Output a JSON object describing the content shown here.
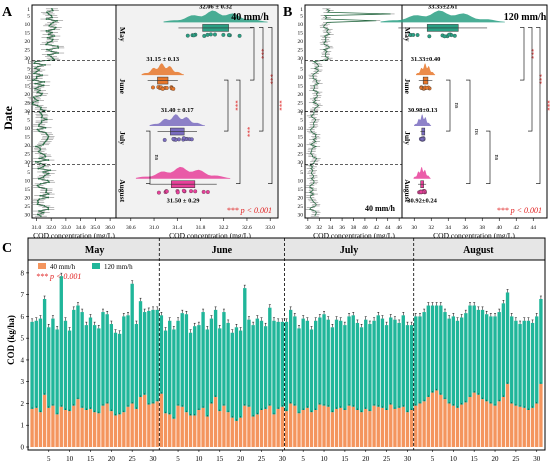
{
  "panel_labels": {
    "a": "A",
    "b": "B",
    "c": "C"
  },
  "colors": {
    "may": "#2aa084",
    "june": "#e8772a",
    "july": "#7a6cc0",
    "august": "#e8409a",
    "series_40": "#f4955e",
    "series_120": "#20b69a",
    "sig": "#e02020",
    "line": "#2a6a44"
  },
  "panel_a": {
    "ylabel": "Date",
    "time_xlabel": "COD concentration (mg/L)",
    "time_xticks": [
      "31.0",
      "32.0",
      "33.0",
      "34.0",
      "35.0",
      "36.0"
    ],
    "title": "40 mm/h",
    "dist_xlabel": "COD concentration (mg/L)",
    "dist_xticks": [
      "30.6",
      "31.0",
      "31.4",
      "31.8",
      "32.2",
      "32.6",
      "33.0"
    ],
    "months": [
      "May",
      "June",
      "July",
      "August"
    ],
    "stats": [
      "32.06 ± 0.32",
      "31.15 ± 0.13",
      "31.40 ± 0.17",
      "31.50 ± 0.29"
    ],
    "brackets": [
      {
        "pair": [
          "May",
          "June"
        ],
        "label": "***"
      },
      {
        "pair": [
          "May",
          "July"
        ],
        "label": "***"
      },
      {
        "pair": [
          "May",
          "August"
        ],
        "label": "***"
      },
      {
        "pair": [
          "June",
          "July"
        ],
        "label": "***"
      },
      {
        "pair": [
          "June",
          "August"
        ],
        "label": "***"
      },
      {
        "pair": [
          "July",
          "August"
        ],
        "label": "ns"
      }
    ],
    "pvalue": "*** p < 0.001"
  },
  "panel_b": {
    "time_xlabel": "COD concentration (mg/L)",
    "time_xticks": [
      "30",
      "32",
      "34",
      "36",
      "38",
      "40",
      "42",
      "44",
      "46"
    ],
    "time_note": "40 mm/h",
    "title": "120 mm/h",
    "dist_xlabel": "COD concentration (mg/L)",
    "dist_xticks": [
      "30",
      "32",
      "34",
      "36",
      "38",
      "40",
      "42",
      "44"
    ],
    "stats": [
      "33.35±2.61",
      "31.33±0.40",
      "30.98±0.13",
      "30.92±0.24"
    ],
    "brackets": [
      {
        "pair": [
          "May",
          "June"
        ],
        "label": "***"
      },
      {
        "pair": [
          "May",
          "July"
        ],
        "label": "***"
      },
      {
        "pair": [
          "May",
          "August"
        ],
        "label": "***"
      },
      {
        "pair": [
          "June",
          "July"
        ],
        "label": "ns"
      },
      {
        "pair": [
          "June",
          "August"
        ],
        "label": "ns"
      },
      {
        "pair": [
          "July",
          "August"
        ],
        "label": "ns"
      }
    ],
    "pvalue": "*** p < 0.001"
  },
  "panel_c": {
    "ylabel": "COD (kg/ha)",
    "months": [
      "May",
      "June",
      "July",
      "August"
    ],
    "legend": [
      "40 mm/h",
      "120 mm/h"
    ],
    "pvalue": "*** p < 0.001",
    "day_ticks": [
      "5",
      "10",
      "15",
      "20",
      "25",
      "30"
    ],
    "yticks": [
      "0",
      "1",
      "2",
      "3",
      "4",
      "5",
      "6",
      "7",
      "8"
    ]
  },
  "chart_data": [
    {
      "type": "line",
      "title": "",
      "series": [
        {
          "name": "40 mm/h",
          "values_by_month": {
            "May": 32.06,
            "June": 31.15,
            "July": 31.4,
            "August": 31.5
          }
        }
      ],
      "xlim": [
        30.5,
        36.5
      ],
      "ylabel": "Date"
    },
    {
      "type": "scatter",
      "title": "40 mm/h",
      "categories": [
        "May",
        "June",
        "July",
        "August"
      ],
      "mean": [
        32.06,
        31.15,
        31.4,
        31.5
      ],
      "sd": [
        0.32,
        0.13,
        0.17,
        0.29
      ],
      "xlim": [
        30.5,
        33.1
      ],
      "xlabel": "COD concentration (mg/L)"
    },
    {
      "type": "line",
      "title": "",
      "series": [
        {
          "name": "40 mm/h",
          "values_by_month": {
            "May": 33.35,
            "June": 31.33,
            "July": 30.98,
            "August": 30.92
          }
        }
      ],
      "xlim": [
        29.5,
        46.5
      ]
    },
    {
      "type": "scatter",
      "title": "120 mm/h",
      "categories": [
        "May",
        "June",
        "July",
        "August"
      ],
      "mean": [
        33.35,
        31.33,
        30.98,
        30.92
      ],
      "sd": [
        2.61,
        0.4,
        0.13,
        0.24
      ],
      "xlim": [
        29.5,
        45.5
      ],
      "xlabel": "COD concentration (mg/L)"
    },
    {
      "type": "bar",
      "stacked": true,
      "categories_by_month": {
        "May": 31,
        "June": 30,
        "July": 31,
        "August": 31
      },
      "series": [
        {
          "name": "40 mm/h",
          "values": [
            1.75,
            1.8,
            1.6,
            2.4,
            1.8,
            1.9,
            1.5,
            1.85,
            1.7,
            1.65,
            1.9,
            2.2,
            1.8,
            1.7,
            1.75,
            1.6,
            1.55,
            1.9,
            2.0,
            1.65,
            1.45,
            1.5,
            1.6,
            1.85,
            2.0,
            1.75,
            2.3,
            2.4,
            1.95,
            2.0,
            2.1,
            2.45,
            1.55,
            1.5,
            1.3,
            1.9,
            1.85,
            1.6,
            1.45,
            1.45,
            1.7,
            1.8,
            1.4,
            2.0,
            2.3,
            1.65,
            1.9,
            1.6,
            1.35,
            1.2,
            1.35,
            1.9,
            1.85,
            1.4,
            1.5,
            1.7,
            1.75,
            1.9,
            1.5,
            1.75,
            1.85,
            1.65,
            2.0,
            1.9,
            1.55,
            1.7,
            1.8,
            1.6,
            1.7,
            1.95,
            1.9,
            1.85,
            1.6,
            1.75,
            1.8,
            1.7,
            1.9,
            1.85,
            1.7,
            1.6,
            1.75,
            1.65,
            1.9,
            1.85,
            1.8,
            1.7,
            1.95,
            1.75,
            1.8,
            1.85,
            1.6,
            1.7,
            1.9,
            2.0,
            2.1,
            2.3,
            2.5,
            2.6,
            2.4,
            2.2,
            2.0,
            1.9,
            1.8,
            1.95,
            2.05,
            2.3,
            2.5,
            2.4,
            2.2,
            2.1,
            2.0,
            1.9,
            2.1,
            2.3,
            2.9,
            2.0,
            1.9,
            1.85,
            1.8,
            1.7,
            1.8,
            2.0,
            2.9
          ]
        },
        {
          "name": "120 mm/h",
          "values": [
            4.0,
            4.0,
            4.3,
            4.4,
            3.7,
            4.0,
            3.9,
            6.0,
            4.1,
            3.7,
            4.4,
            4.3,
            4.4,
            3.9,
            4.2,
            4.0,
            3.9,
            4.3,
            4.1,
            4.0,
            3.8,
            3.7,
            4.4,
            4.2,
            5.5,
            3.9,
            4.4,
            3.8,
            4.3,
            4.3,
            4.2,
            3.6,
            3.8,
            4.3,
            4.1,
            3.9,
            4.3,
            4.5,
            3.8,
            4.1,
            3.9,
            4.4,
            4.0,
            3.9,
            4.0,
            3.8,
            4.3,
            4.1,
            3.9,
            4.3,
            4.0,
            5.4,
            4.0,
            4.2,
            4.4,
            4.1,
            3.8,
            4.5,
            4.3,
            4.0,
            3.9,
            4.1,
            4.3,
            4.1,
            3.9,
            4.2,
            4.0,
            3.8,
            4.1,
            4.0,
            4.2,
            4.0,
            3.9,
            4.1,
            4.0,
            3.9,
            4.1,
            4.2,
            4.0,
            3.9,
            4.1,
            4.0,
            3.9,
            4.2,
            4.1,
            3.9,
            4.0,
            4.1,
            3.9,
            4.2,
            4.0,
            3.9,
            4.1,
            4.0,
            4.1,
            4.2,
            4.0,
            3.9,
            4.1,
            4.0,
            3.9,
            4.1,
            4.0,
            4.0,
            4.1,
            4.2,
            4.0,
            3.9,
            4.1,
            4.0,
            4.0,
            4.1,
            4.1,
            4.3,
            4.2,
            4.0,
            3.9,
            3.8,
            4.0,
            4.1,
            3.9,
            4.0,
            3.9
          ]
        }
      ],
      "ylim": [
        0,
        8.5
      ],
      "ylabel": "COD (kg/ha)"
    }
  ]
}
